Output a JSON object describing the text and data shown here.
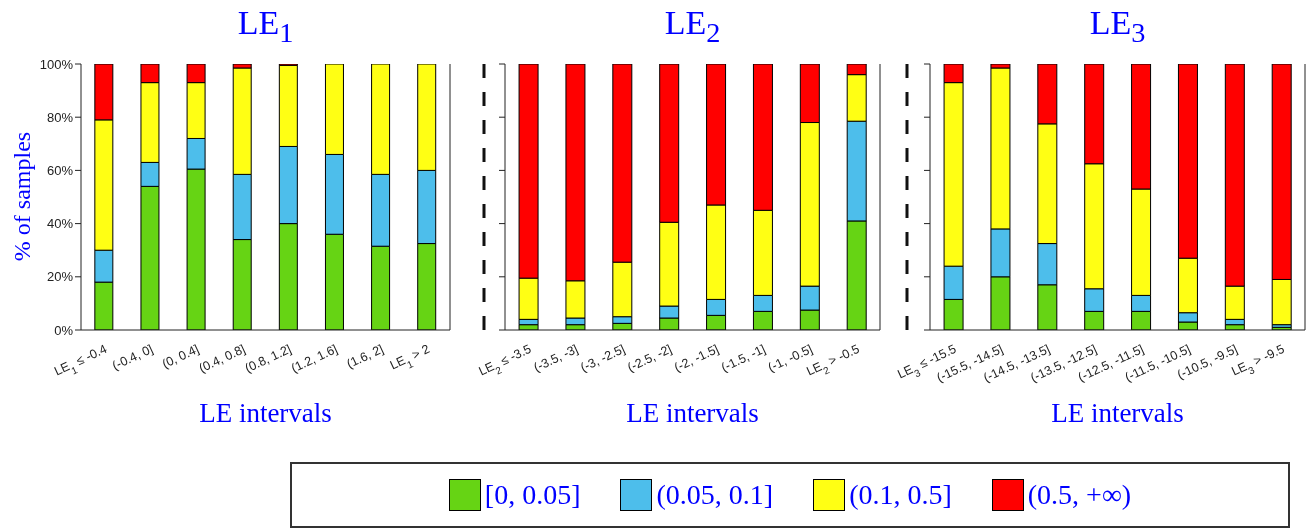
{
  "chart_data": [
    {
      "type": "bar",
      "title": "LE$_{1}$",
      "xlabel": "LE intervals",
      "ylabel": "% of samples",
      "stacked": true,
      "legend": "bottom",
      "categories": [
        "LE$_{1}$ ≤ -0.4",
        "(-0.4, 0]",
        "(0, 0.4]",
        "(0.4, 0.8]",
        "(0.8, 1.2]",
        "(1.2, 1.6]",
        "(1.6, 2]",
        "LE$_{1}$ > 2"
      ],
      "ylim": [
        0,
        100
      ],
      "yticks": [
        {
          "value": 0,
          "label": "0%"
        },
        {
          "value": 20,
          "label": "20%"
        },
        {
          "value": 40,
          "label": "40%"
        },
        {
          "value": 60,
          "label": "60%"
        },
        {
          "value": 80,
          "label": "80%"
        },
        {
          "value": 100,
          "label": "100%"
        }
      ],
      "series": [
        {
          "name": "[0, 0.05]",
          "color": "#66d414",
          "values": [
            18,
            54,
            60.5,
            34,
            40,
            36,
            31.5,
            32.5
          ]
        },
        {
          "name": "(0.05, 0.1]",
          "color": "#4dbeeb",
          "values": [
            12,
            9,
            11.5,
            24.5,
            29,
            30,
            27,
            27.5
          ]
        },
        {
          "name": "(0.1, 0.5]",
          "color": "#ffff14",
          "values": [
            49,
            30,
            21,
            40,
            30.5,
            34,
            41.5,
            40
          ]
        },
        {
          "name": "(0.5, +∞)",
          "color": "#ff0000",
          "values": [
            21,
            7,
            7,
            1.5,
            0.5,
            0,
            0,
            0
          ]
        }
      ]
    },
    {
      "type": "bar",
      "title": "LE$_{2}$",
      "xlabel": "LE intervals",
      "stacked": true,
      "tick_labels": "x",
      "categories": [
        "LE$_{2}$ ≤ -3.5",
        "(-3.5, -3]",
        "(-3, -2.5]",
        "(-2.5, -2]",
        "(-2, -1.5]",
        "(-1.5, -1]",
        "(-1, -0.5]",
        "LE$_{2}$ > -0.5"
      ],
      "ylim": [
        0,
        100
      ],
      "yticks": [
        {
          "value": 0,
          "label": null
        },
        {
          "value": 20,
          "label": null
        },
        {
          "value": 40,
          "label": null
        },
        {
          "value": 60,
          "label": null
        },
        {
          "value": 80,
          "label": null
        },
        {
          "value": 100,
          "label": null
        }
      ],
      "series": [
        {
          "color": "#66d414",
          "values": [
            2,
            2,
            2.5,
            4.5,
            5.5,
            7,
            7.5,
            41
          ]
        },
        {
          "color": "#4dbeeb",
          "values": [
            2,
            2.5,
            2.5,
            4.5,
            6,
            6,
            9,
            37.5
          ]
        },
        {
          "color": "#ffff14",
          "values": [
            15.5,
            14,
            20.5,
            31.5,
            35.5,
            32,
            61.5,
            17.5
          ]
        },
        {
          "color": "#ff0000",
          "values": [
            80.5,
            81.5,
            74.5,
            59.5,
            53,
            55,
            22,
            4
          ]
        }
      ]
    },
    {
      "type": "bar",
      "title": "LE$_{3}$",
      "xlabel": "LE intervals",
      "stacked": true,
      "tick_labels": "x",
      "categories": [
        "LE$_{3}$ ≤ -15.5",
        "(-15.5, -14.5]",
        "(-14.5, -13.5]",
        "(-13.5, -12.5]",
        "(-12.5, -11.5]",
        "(-11.5, -10.5]",
        "(-10.5, -9.5]",
        "LE$_{3}$ > -9.5"
      ],
      "ylim": [
        0,
        100
      ],
      "yticks": [
        {
          "value": 0,
          "label": null
        },
        {
          "value": 20,
          "label": null
        },
        {
          "value": 40,
          "label": null
        },
        {
          "value": 60,
          "label": null
        },
        {
          "value": 80,
          "label": null
        },
        {
          "value": 100,
          "label": null
        }
      ],
      "series": [
        {
          "color": "#66d414",
          "values": [
            11.5,
            20,
            17,
            7,
            7,
            3,
            2,
            1
          ]
        },
        {
          "color": "#4dbeeb",
          "values": [
            12.5,
            18,
            15.5,
            8.5,
            6,
            3.5,
            2,
            1
          ]
        },
        {
          "color": "#ffff14",
          "values": [
            69,
            60.5,
            45,
            47,
            40,
            20.5,
            12.5,
            17
          ]
        },
        {
          "color": "#ff0000",
          "values": [
            7,
            1.5,
            22.5,
            37.5,
            47,
            73,
            83.5,
            81
          ]
        }
      ]
    }
  ]
}
